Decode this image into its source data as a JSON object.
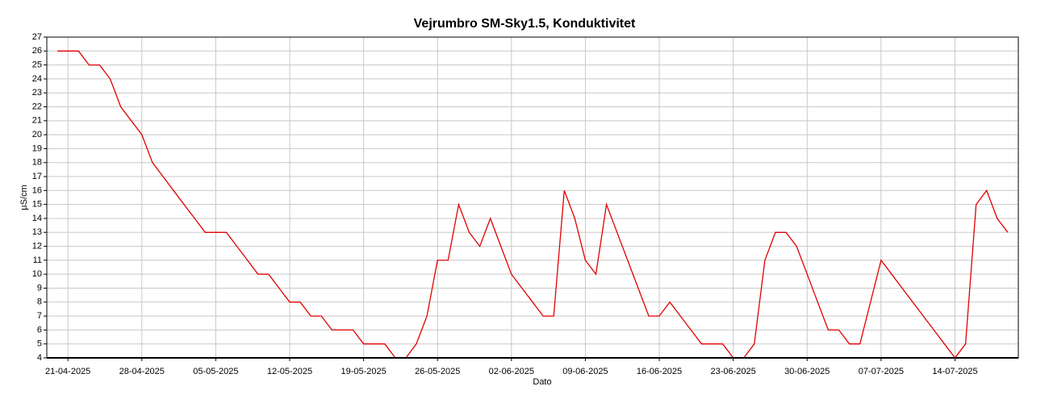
{
  "chart_data": {
    "type": "line",
    "title": "Vejrumbro SM-Sky1.5, Konduktivitet",
    "x_label": "Dato",
    "y_label": "µS/cm",
    "x": [
      "20-04-2025",
      "21-04-2025",
      "22-04-2025",
      "23-04-2025",
      "24-04-2025",
      "25-04-2025",
      "26-04-2025",
      "27-04-2025",
      "28-04-2025",
      "29-04-2025",
      "30-04-2025",
      "01-05-2025",
      "02-05-2025",
      "03-05-2025",
      "04-05-2025",
      "05-05-2025",
      "06-05-2025",
      "07-05-2025",
      "08-05-2025",
      "09-05-2025",
      "10-05-2025",
      "11-05-2025",
      "12-05-2025",
      "13-05-2025",
      "14-05-2025",
      "15-05-2025",
      "16-05-2025",
      "17-05-2025",
      "18-05-2025",
      "19-05-2025",
      "20-05-2025",
      "21-05-2025",
      "22-05-2025",
      "23-05-2025",
      "24-05-2025",
      "25-05-2025",
      "26-05-2025",
      "27-05-2025",
      "28-05-2025",
      "29-05-2025",
      "30-05-2025",
      "31-05-2025",
      "01-06-2025",
      "02-06-2025",
      "03-06-2025",
      "04-06-2025",
      "05-06-2025",
      "06-06-2025",
      "07-06-2025",
      "08-06-2025",
      "09-06-2025",
      "10-06-2025",
      "11-06-2025",
      "12-06-2025",
      "13-06-2025",
      "14-06-2025",
      "15-06-2025",
      "16-06-2025",
      "17-06-2025",
      "18-06-2025",
      "19-06-2025",
      "20-06-2025",
      "21-06-2025",
      "22-06-2025",
      "23-06-2025",
      "24-06-2025",
      "25-06-2025",
      "26-06-2025",
      "27-06-2025",
      "28-06-2025",
      "29-06-2025",
      "30-06-2025",
      "01-07-2025",
      "02-07-2025",
      "03-07-2025",
      "04-07-2025",
      "05-07-2025",
      "06-07-2025",
      "07-07-2025",
      "08-07-2025",
      "09-07-2025",
      "10-07-2025",
      "11-07-2025",
      "12-07-2025",
      "13-07-2025",
      "14-07-2025",
      "15-07-2025",
      "16-07-2025",
      "17-07-2025",
      "18-07-2025",
      "19-07-2025"
    ],
    "series": [
      {
        "name": "Konduktivitet",
        "color": "#e00000",
        "values": [
          26,
          26,
          26,
          25,
          25,
          24,
          22,
          21,
          20,
          18,
          17,
          16,
          15,
          14,
          13,
          13,
          13,
          12,
          11,
          10,
          10,
          9,
          8,
          8,
          7,
          7,
          6,
          6,
          6,
          5,
          5,
          5,
          4,
          4,
          5,
          7,
          11,
          11,
          15,
          13,
          12,
          14,
          12,
          10,
          9,
          8,
          7,
          7,
          16,
          14,
          11,
          10,
          15,
          13,
          11,
          9,
          7,
          7,
          8,
          7,
          6,
          5,
          5,
          5,
          4,
          4,
          5,
          11,
          13,
          13,
          12,
          10,
          8,
          6,
          6,
          5,
          5,
          8,
          11,
          10,
          9,
          8,
          7,
          6,
          5,
          4,
          5,
          15,
          16,
          14,
          13
        ]
      }
    ],
    "xlim": [
      "19-04-2025",
      "20-07-2025"
    ],
    "xticks": [
      "21-04-2025",
      "28-04-2025",
      "05-05-2025",
      "12-05-2025",
      "19-05-2025",
      "26-05-2025",
      "02-06-2025",
      "09-06-2025",
      "16-06-2025",
      "23-06-2025",
      "30-06-2025",
      "07-07-2025",
      "14-07-2025"
    ],
    "ylim": [
      4,
      27
    ],
    "yticks": [
      4,
      5,
      6,
      7,
      8,
      9,
      10,
      11,
      12,
      13,
      14,
      15,
      16,
      17,
      18,
      19,
      20,
      21,
      22,
      23,
      24,
      25,
      26,
      27
    ],
    "grid": true
  }
}
